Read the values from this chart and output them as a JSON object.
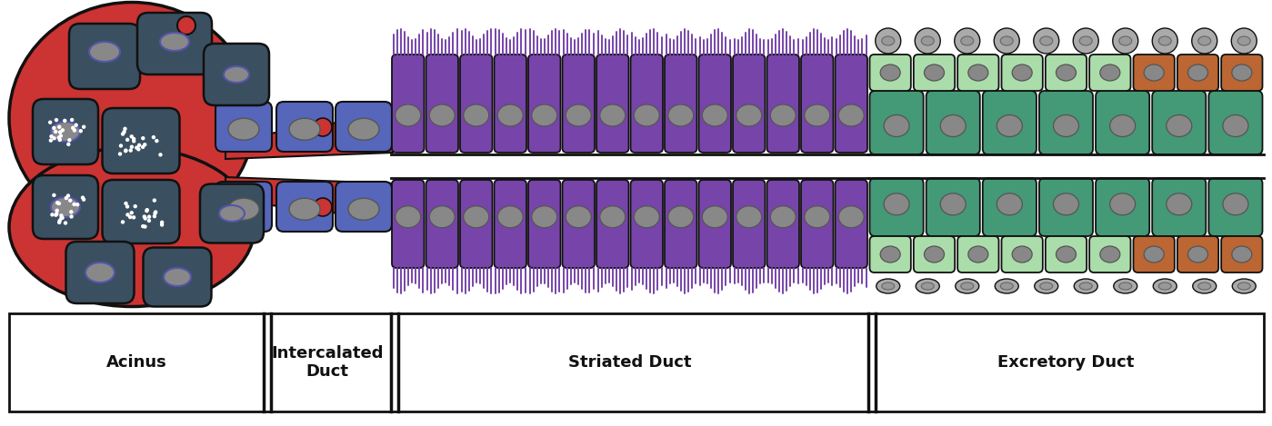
{
  "figure_width": 13.99,
  "figure_height": 4.69,
  "bg_color": "#ffffff",
  "acinus_color": "#3a5060",
  "myoepithelial_color": "#cc3333",
  "nucleus_color": "#888888",
  "nucleus_outline_color": "#5555aa",
  "acinus_nucleus_color": "#888888",
  "secretory_dot_color": "#ffffff",
  "intercalated_color": "#5566bb",
  "striated_color": "#7744aa",
  "striated_nuc_color": "#888888",
  "green_color": "#449977",
  "lightgreen_color": "#aaddaa",
  "orange_color": "#bb6633",
  "gray_cap_color": "#aaaaaa",
  "gray_cap_nucleus": "#777777",
  "label_fontsize": 13,
  "label_fontweight": "bold",
  "section_labels": [
    "Acinus",
    "Intercalated\nDuct",
    "Striated Duct",
    "Excretory Duct"
  ],
  "section_bounds": [
    10,
    290,
    430,
    955,
    1390
  ]
}
